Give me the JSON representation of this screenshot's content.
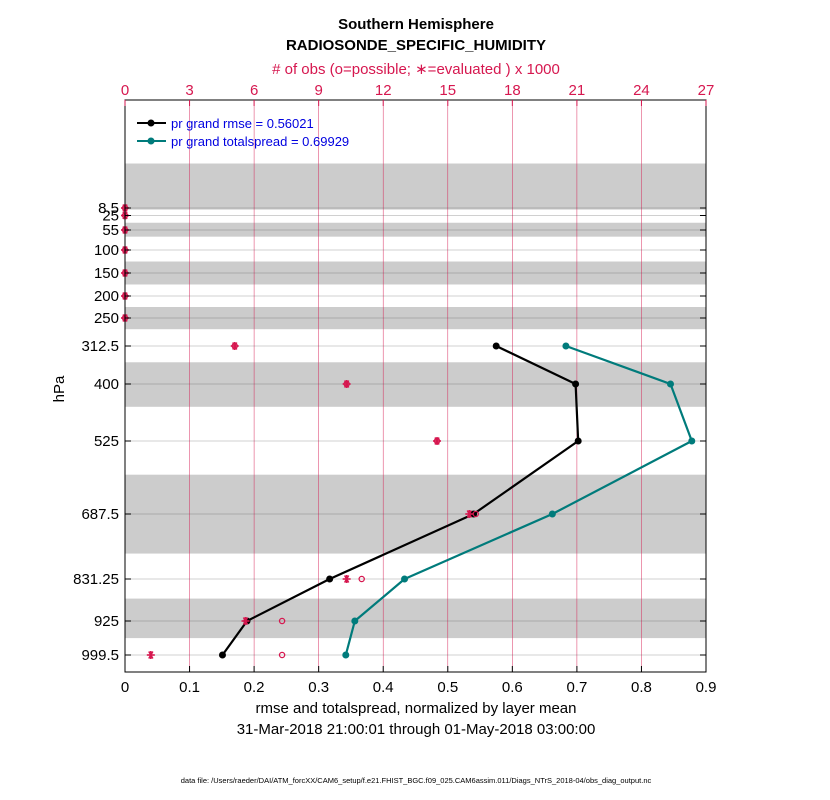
{
  "chart_data": {
    "type": "line",
    "title": "Southern Hemisphere",
    "subtitle": "RADIOSONDE_SPECIFIC_HUMIDITY",
    "top_axis_label": "# of obs (o=possible; ∗=evaluated ) x 1000",
    "xlabel": "rmse and totalspread, normalized by layer mean",
    "date_range": "31-Mar-2018 21:00:01 through 01-May-2018 03:00:00",
    "ylabel": "hPa",
    "footer": "data file: /Users/raeder/DAI/ATM_forcXX/CAM6_setup/f.e21.FHIST_BGC.f09_025.CAM6assim.011/Diags_NTrS_2018-04/obs_diag_output.nc",
    "xlim": [
      0,
      0.9
    ],
    "top_xlim": [
      0,
      27
    ],
    "x_ticks": [
      0,
      0.1,
      0.2,
      0.3,
      0.4,
      0.5,
      0.6,
      0.7,
      0.8,
      0.9
    ],
    "x_tick_labels": [
      "0",
      "0.1",
      "0.2",
      "0.3",
      "0.4",
      "0.5",
      "0.6",
      "0.7",
      "0.8",
      "0.9"
    ],
    "top_ticks": [
      0,
      3,
      6,
      9,
      12,
      15,
      18,
      21,
      24,
      27
    ],
    "top_tick_labels": [
      "0",
      "3",
      "6",
      "9",
      "12",
      "15",
      "18",
      "21",
      "24",
      "27"
    ],
    "levels": [
      8.5,
      25,
      55,
      100,
      150,
      200,
      250,
      312.5,
      400,
      525,
      687.5,
      831.25,
      925,
      999.5
    ],
    "level_labels": [
      "8.5",
      "25",
      "55",
      "100",
      "150",
      "200",
      "250",
      "312.5",
      "400",
      "525",
      "687.5",
      "831.25",
      "925",
      "999.5"
    ],
    "shaded_bands": [
      [
        5,
        12
      ],
      [
        40,
        70
      ],
      [
        125,
        175
      ],
      [
        225,
        275
      ],
      [
        350,
        450
      ],
      [
        600,
        775
      ],
      [
        875,
        962.5
      ]
    ],
    "series": [
      {
        "name": "pr grand rmse = 0.56021",
        "color": "#000000",
        "levels": [
          312.5,
          400,
          525,
          687.5,
          831.25,
          925,
          999.5
        ],
        "values": [
          0.575,
          0.698,
          0.702,
          0.54,
          0.317,
          0.189,
          0.151
        ]
      },
      {
        "name": "pr grand totalspread = 0.69929",
        "color": "#007b7b",
        "levels": [
          312.5,
          400,
          525,
          687.5,
          831.25,
          925,
          999.5
        ],
        "values": [
          0.683,
          0.845,
          0.878,
          0.662,
          0.433,
          0.356,
          0.342
        ]
      }
    ],
    "obs_possible": {
      "marker": "o",
      "color": "#d6174f",
      "levels": [
        8.5,
        25,
        55,
        100,
        150,
        200,
        250,
        312.5,
        400,
        525,
        687.5,
        831.25,
        925,
        999.5
      ],
      "values": [
        0,
        0,
        0,
        0,
        0,
        0,
        0,
        5.1,
        10.3,
        14.5,
        16.3,
        11.0,
        7.3,
        7.3
      ]
    },
    "obs_evaluated": {
      "marker": "*",
      "color": "#d6174f",
      "levels": [
        8.5,
        25,
        55,
        100,
        150,
        200,
        250,
        312.5,
        400,
        525,
        687.5,
        831.25,
        925,
        999.5
      ],
      "values": [
        0,
        0,
        0,
        0,
        0,
        0,
        0,
        5.1,
        10.3,
        14.5,
        16.0,
        10.3,
        5.6,
        1.2
      ]
    },
    "colors": {
      "obs": "#d6174f",
      "legend_text": "#0000e0",
      "band": "#cccccc",
      "grid": "#d6174f"
    }
  }
}
